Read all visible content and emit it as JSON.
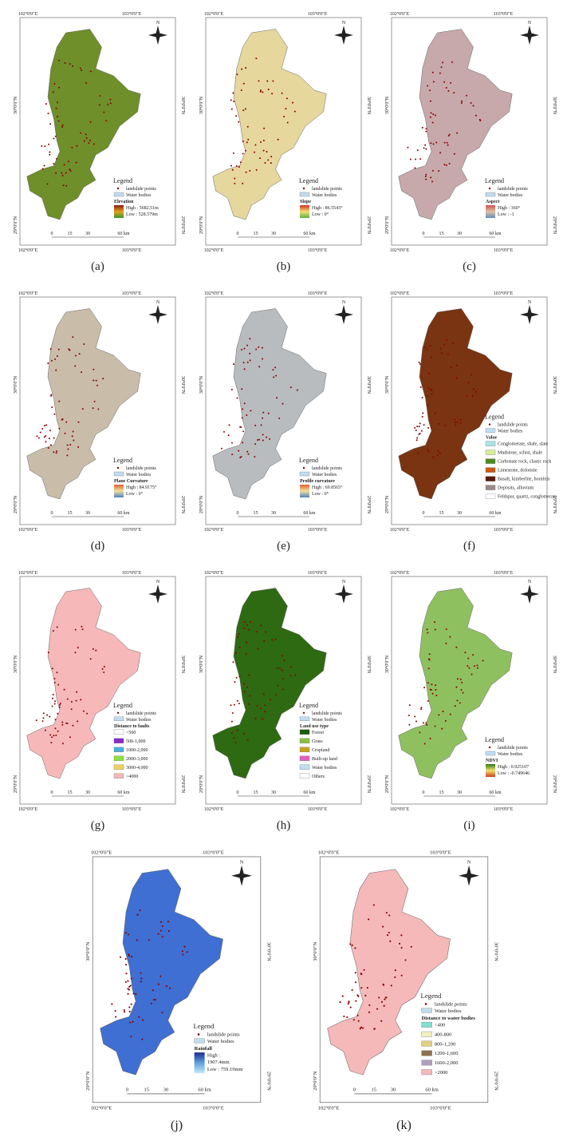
{
  "shared": {
    "lon": [
      "102°0'0\"E",
      "103°0'0\"E"
    ],
    "lat": [
      "30°0'0\"N",
      "29°0'0\"N"
    ],
    "scale": [
      "0",
      "15",
      "30",
      "60 km"
    ],
    "north": "N",
    "legend": "Legend",
    "landslide": "landslide points",
    "water": "Water bodies"
  },
  "panels": [
    {
      "caption": "(a)",
      "fill": "#6f8f2a",
      "title": "Elevation",
      "ramp": [
        "High : 5682.51m",
        "Low : 528.579m"
      ],
      "ramp_colors": [
        "#8b1a0a",
        "#e0a020",
        "#3a9a2a"
      ]
    },
    {
      "caption": "(b)",
      "fill": "#e6d79c",
      "title": "Slope",
      "ramp": [
        "High : 86.5543°",
        "Low : 0°"
      ],
      "ramp_colors": [
        "#d03020",
        "#f0e070",
        "#60b040"
      ]
    },
    {
      "caption": "(c)",
      "fill": "#c7a9ab",
      "title": "Aspect",
      "ramp": [
        "High : 360°",
        "Low : -1"
      ],
      "ramp_colors": [
        "#d05050",
        "#e0c0a0",
        "#6090c0"
      ]
    },
    {
      "caption": "(d)",
      "fill": "#c9bdaa",
      "title": "Plane Curvature",
      "ramp": [
        "High : 84.9175°",
        "Low : 0°"
      ],
      "ramp_colors": [
        "#e06030",
        "#f0e0a0",
        "#5080c0"
      ]
    },
    {
      "caption": "(e)",
      "fill": "#b9bcbf",
      "title": "Profile curvature",
      "ramp": [
        "High : 69.8565°",
        "Low : 0°"
      ],
      "ramp_colors": [
        "#e06030",
        "#f0e0a0",
        "#5080c0"
      ]
    },
    {
      "caption": "(f)",
      "fill": "#7a3412",
      "title": "Value",
      "items": [
        {
          "label": "Conglomerate, shale, slate",
          "color": "#a8e4e4"
        },
        {
          "label": "Mudstone, schist, shale",
          "color": "#d8ec9a"
        },
        {
          "label": "Carbonate rock, clastic rock",
          "color": "#4a8a20"
        },
        {
          "label": "Limestone, dolomite",
          "color": "#c85a10"
        },
        {
          "label": "Basalt, kimberlite, hornfels",
          "color": "#5a1a08"
        },
        {
          "label": "Deposits, alluvium",
          "color": "#9a8a8a"
        },
        {
          "label": "Feldspar, quartz, conglomerate",
          "color": "#ffffff"
        }
      ]
    },
    {
      "caption": "(g)",
      "fill": "#f6b8b8",
      "title": "Distance to faults",
      "items": [
        {
          "label": "<500",
          "color": "#ffffff"
        },
        {
          "label": "500-1,000",
          "color": "#8a2ad0"
        },
        {
          "label": "1000-2,000",
          "color": "#4ab0e0"
        },
        {
          "label": "2000-3,000",
          "color": "#8ae040"
        },
        {
          "label": "3000-4,000",
          "color": "#f0d060"
        },
        {
          "label": ">4000",
          "color": "#f6b8b8"
        }
      ]
    },
    {
      "caption": "(h)",
      "fill": "#2e6a12",
      "title": "Land use type",
      "items": [
        {
          "label": "Forest",
          "color": "#1f5a0a"
        },
        {
          "label": "Grass",
          "color": "#8ac040"
        },
        {
          "label": "Cropland",
          "color": "#c8a020"
        },
        {
          "label": "Built-up land",
          "color": "#e060c0"
        },
        {
          "label": "Water bodies",
          "color": "#c0dcf0"
        },
        {
          "label": "Others",
          "color": "#ffffff"
        }
      ]
    },
    {
      "caption": "(i)",
      "fill": "#8fc060",
      "title": "NDVI",
      "ramp": [
        "High : 0.925107",
        "Low : -0.749646"
      ],
      "ramp_colors": [
        "#2a7a10",
        "#f0e070",
        "#d04020"
      ]
    },
    {
      "caption": "(j)",
      "fill": "#3f6fd2",
      "title": "Rainfall",
      "ramp": [
        "High :",
        "1907.4mm",
        "Low : 759.19mm"
      ],
      "ramp_colors": [
        "#1a2a90",
        "#60a0e0",
        "#c0e8f8"
      ]
    },
    {
      "caption": "(k)",
      "fill": "#f6b9b9",
      "title": "Distance to water bodies",
      "items": [
        {
          "label": "<400",
          "color": "#80e0d0"
        },
        {
          "label": "400-800",
          "color": "#f0f0c0"
        },
        {
          "label": "800-1,200",
          "color": "#e0d080"
        },
        {
          "label": "1200-1,600",
          "color": "#907050"
        },
        {
          "label": "1600-2,000",
          "color": "#b0a0c0"
        },
        {
          "label": ">2000",
          "color": "#f6b9b9"
        }
      ]
    }
  ]
}
